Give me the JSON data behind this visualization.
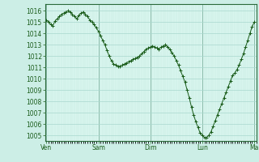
{
  "background_color": "#cceee6",
  "plot_bg_color": "#d8f5ee",
  "grid_color_minor": "#c0e8de",
  "grid_color_major": "#a8d8ce",
  "line_color": "#1a5c1a",
  "marker_color": "#1a5c1a",
  "ylim": [
    1004.5,
    1016.6
  ],
  "yticks": [
    1005,
    1006,
    1007,
    1008,
    1009,
    1010,
    1011,
    1012,
    1013,
    1014,
    1015,
    1016
  ],
  "xtick_labels": [
    "Ven",
    "Sam",
    "Dim",
    "Lun",
    "Ma"
  ],
  "xtick_positions": [
    0,
    24,
    48,
    72,
    96
  ],
  "xlim": [
    -1,
    100
  ],
  "vline_color": "#4a7a5a",
  "spine_color": "#2a6a3a",
  "data_x": [
    0,
    1,
    2,
    3,
    4,
    5,
    6,
    7,
    8,
    9,
    10,
    11,
    12,
    13,
    14,
    15,
    16,
    17,
    18,
    19,
    20,
    21,
    22,
    23,
    24,
    25,
    26,
    27,
    28,
    29,
    30,
    31,
    32,
    33,
    34,
    35,
    36,
    37,
    38,
    39,
    40,
    41,
    42,
    43,
    44,
    45,
    46,
    47,
    48,
    49,
    50,
    51,
    52,
    53,
    54,
    55,
    56,
    57,
    58,
    59,
    60,
    61,
    62,
    63,
    64,
    65,
    66,
    67,
    68,
    69,
    70,
    71,
    72,
    73,
    74,
    75,
    76,
    77,
    78,
    79,
    80,
    81,
    82,
    83,
    84,
    85,
    86,
    87,
    88,
    89,
    90,
    91,
    92,
    93,
    94,
    95,
    96
  ],
  "data_y": [
    1015.2,
    1015.0,
    1014.8,
    1014.7,
    1015.1,
    1015.3,
    1015.5,
    1015.7,
    1015.8,
    1015.9,
    1016.0,
    1015.9,
    1015.7,
    1015.5,
    1015.3,
    1015.6,
    1015.8,
    1015.9,
    1015.7,
    1015.5,
    1015.2,
    1015.0,
    1014.8,
    1014.5,
    1014.2,
    1013.8,
    1013.4,
    1013.0,
    1012.5,
    1012.0,
    1011.6,
    1011.3,
    1011.2,
    1011.1,
    1011.1,
    1011.2,
    1011.3,
    1011.4,
    1011.5,
    1011.6,
    1011.7,
    1011.8,
    1011.9,
    1012.0,
    1012.2,
    1012.4,
    1012.6,
    1012.7,
    1012.8,
    1012.9,
    1012.8,
    1012.7,
    1012.6,
    1012.8,
    1012.9,
    1013.0,
    1012.8,
    1012.6,
    1012.3,
    1012.0,
    1011.6,
    1011.2,
    1010.7,
    1010.2,
    1009.7,
    1009.0,
    1008.3,
    1007.5,
    1006.8,
    1006.2,
    1005.7,
    1005.2,
    1005.0,
    1004.8,
    1004.8,
    1005.0,
    1005.3,
    1005.8,
    1006.3,
    1006.8,
    1007.3,
    1007.8,
    1008.3,
    1008.8,
    1009.3,
    1009.8,
    1010.3,
    1010.5,
    1010.8,
    1011.2,
    1011.7,
    1012.2,
    1012.8,
    1013.4,
    1014.0,
    1014.6,
    1015.0
  ]
}
